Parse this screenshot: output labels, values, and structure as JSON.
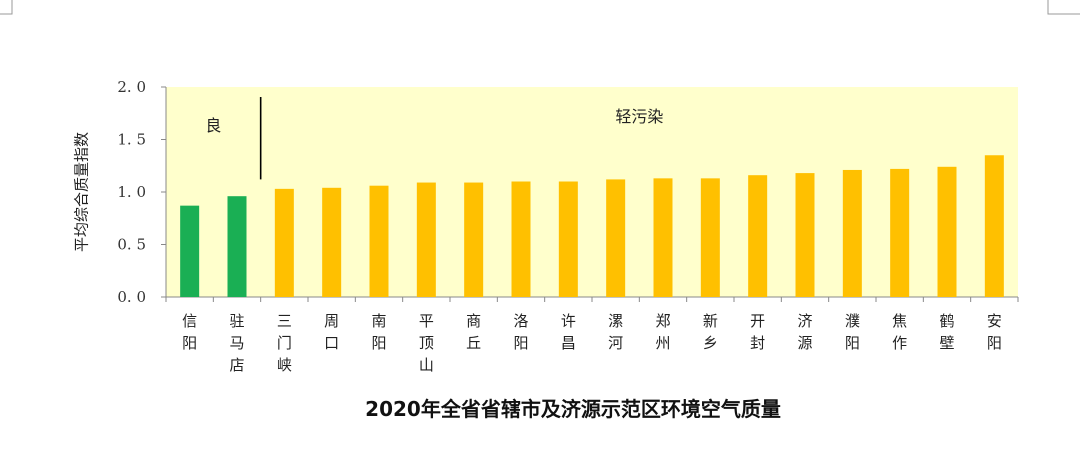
{
  "chart_data": {
    "type": "bar",
    "title": "2020年全省省辖市及济源示范区环境空气质量",
    "ylabel": "平均综合质量指数",
    "xlabel": "",
    "ylim": [
      0,
      2.0
    ],
    "yticks": [
      "0. 0",
      "0. 5",
      "1. 0",
      "1. 5",
      "2. 0"
    ],
    "ytick_values": [
      0,
      0.5,
      1.0,
      1.5,
      2.0
    ],
    "grid": false,
    "categories": [
      "信阳",
      "驻马店",
      "三门峡",
      "周口",
      "南阳",
      "平顶山",
      "商丘",
      "洛阳",
      "许昌",
      "漯河",
      "郑州",
      "新乡",
      "开封",
      "济源",
      "濮阳",
      "焦作",
      "鹤壁",
      "安阳"
    ],
    "values": [
      0.87,
      0.96,
      1.03,
      1.04,
      1.06,
      1.09,
      1.09,
      1.1,
      1.1,
      1.12,
      1.13,
      1.13,
      1.16,
      1.18,
      1.21,
      1.22,
      1.24,
      1.35
    ],
    "bar_colors": [
      "#1AAF54",
      "#1AAF54",
      "#FFC000",
      "#FFC000",
      "#FFC000",
      "#FFC000",
      "#FFC000",
      "#FFC000",
      "#FFC000",
      "#FFC000",
      "#FFC000",
      "#FFC000",
      "#FFC000",
      "#FFC000",
      "#FFC000",
      "#FFC000",
      "#FFC000",
      "#FFC000"
    ],
    "zones": [
      {
        "label": "良",
        "start_index": 0,
        "end_index": 1
      },
      {
        "label": "轻污染",
        "start_index": 2,
        "end_index": 17
      }
    ],
    "plot_background": "#FFFFCC"
  }
}
